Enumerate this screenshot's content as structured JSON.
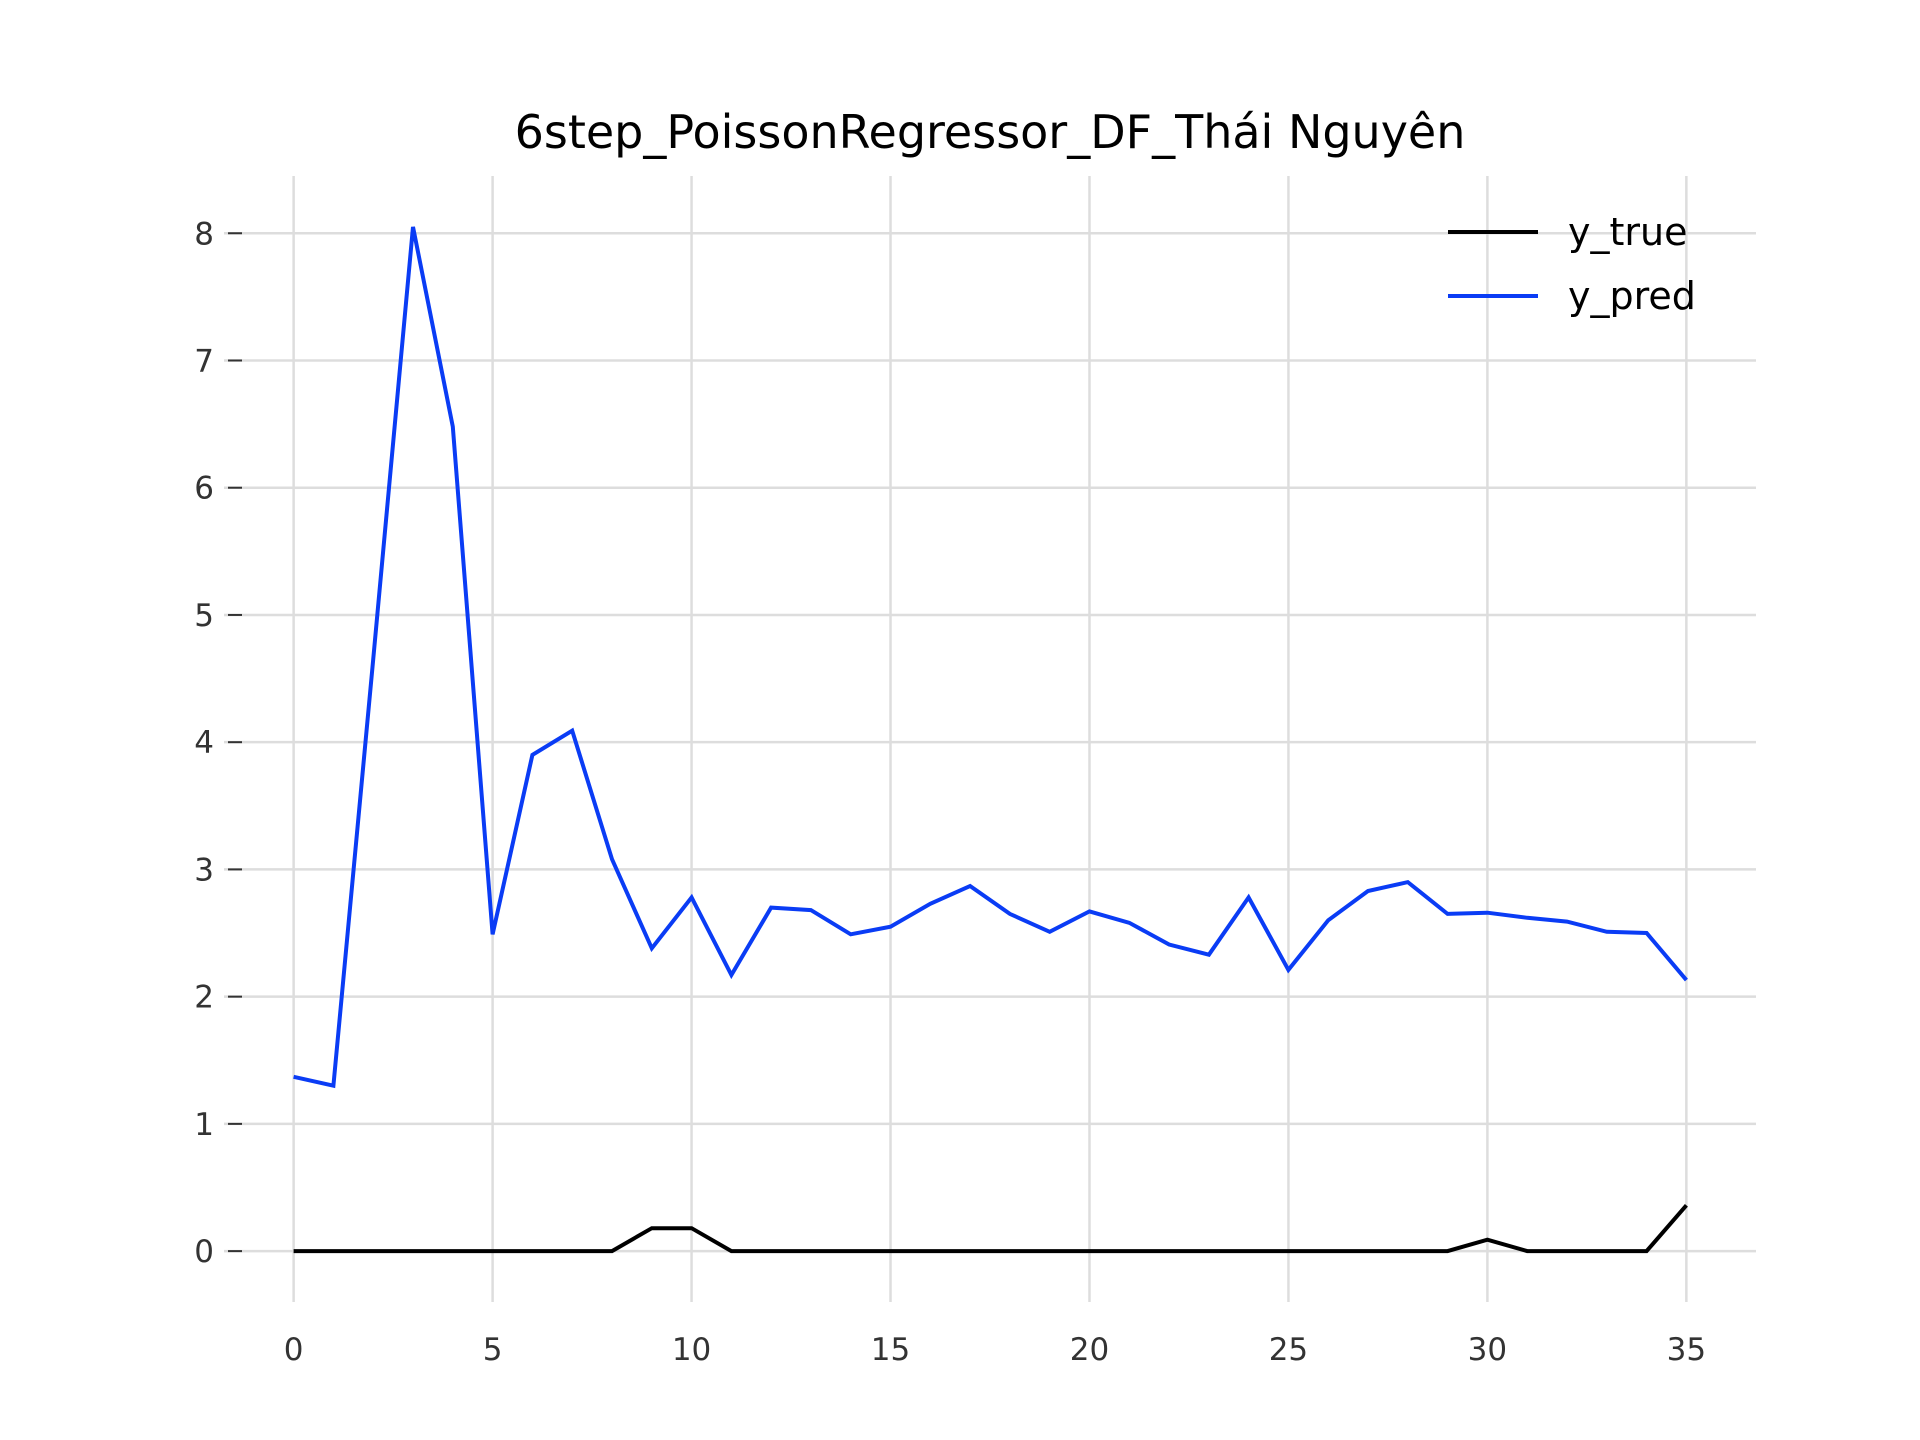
{
  "chart_data": {
    "type": "line",
    "title": "6step_PoissonRegressor_DF_Thái Nguyên",
    "xlabel": "",
    "ylabel": "",
    "xlim": [
      -1.75,
      36.75
    ],
    "ylim": [
      -0.4,
      8.45
    ],
    "xticks": [
      0,
      5,
      10,
      15,
      20,
      25,
      30,
      35
    ],
    "yticks": [
      0,
      1,
      2,
      3,
      4,
      5,
      6,
      7,
      8
    ],
    "grid": true,
    "legend_position": "top-right",
    "x": [
      0,
      1,
      2,
      3,
      4,
      5,
      6,
      7,
      8,
      9,
      10,
      11,
      12,
      13,
      14,
      15,
      16,
      17,
      18,
      19,
      20,
      21,
      22,
      23,
      24,
      25,
      26,
      27,
      28,
      29,
      30,
      31,
      32,
      33,
      34,
      35
    ],
    "series": [
      {
        "name": "y_true",
        "color": "#000000",
        "values": [
          0,
          0,
          0,
          0,
          0,
          0,
          0,
          0,
          0,
          0.18,
          0.18,
          0,
          0,
          0,
          0,
          0,
          0,
          0,
          0,
          0,
          0,
          0,
          0,
          0,
          0,
          0,
          0,
          0,
          0,
          0,
          0.09,
          0,
          0,
          0,
          0,
          0.36
        ]
      },
      {
        "name": "y_pred",
        "color": "#0a3cf5",
        "values": [
          1.37,
          1.3,
          4.65,
          8.05,
          6.48,
          2.49,
          3.9,
          4.09,
          3.08,
          2.38,
          2.78,
          2.17,
          2.7,
          2.68,
          2.49,
          2.55,
          2.73,
          2.87,
          2.65,
          2.51,
          2.67,
          2.58,
          2.41,
          2.33,
          2.78,
          2.21,
          2.6,
          2.83,
          2.9,
          2.65,
          2.66,
          2.62,
          2.59,
          2.51,
          2.5,
          2.13
        ]
      }
    ]
  }
}
